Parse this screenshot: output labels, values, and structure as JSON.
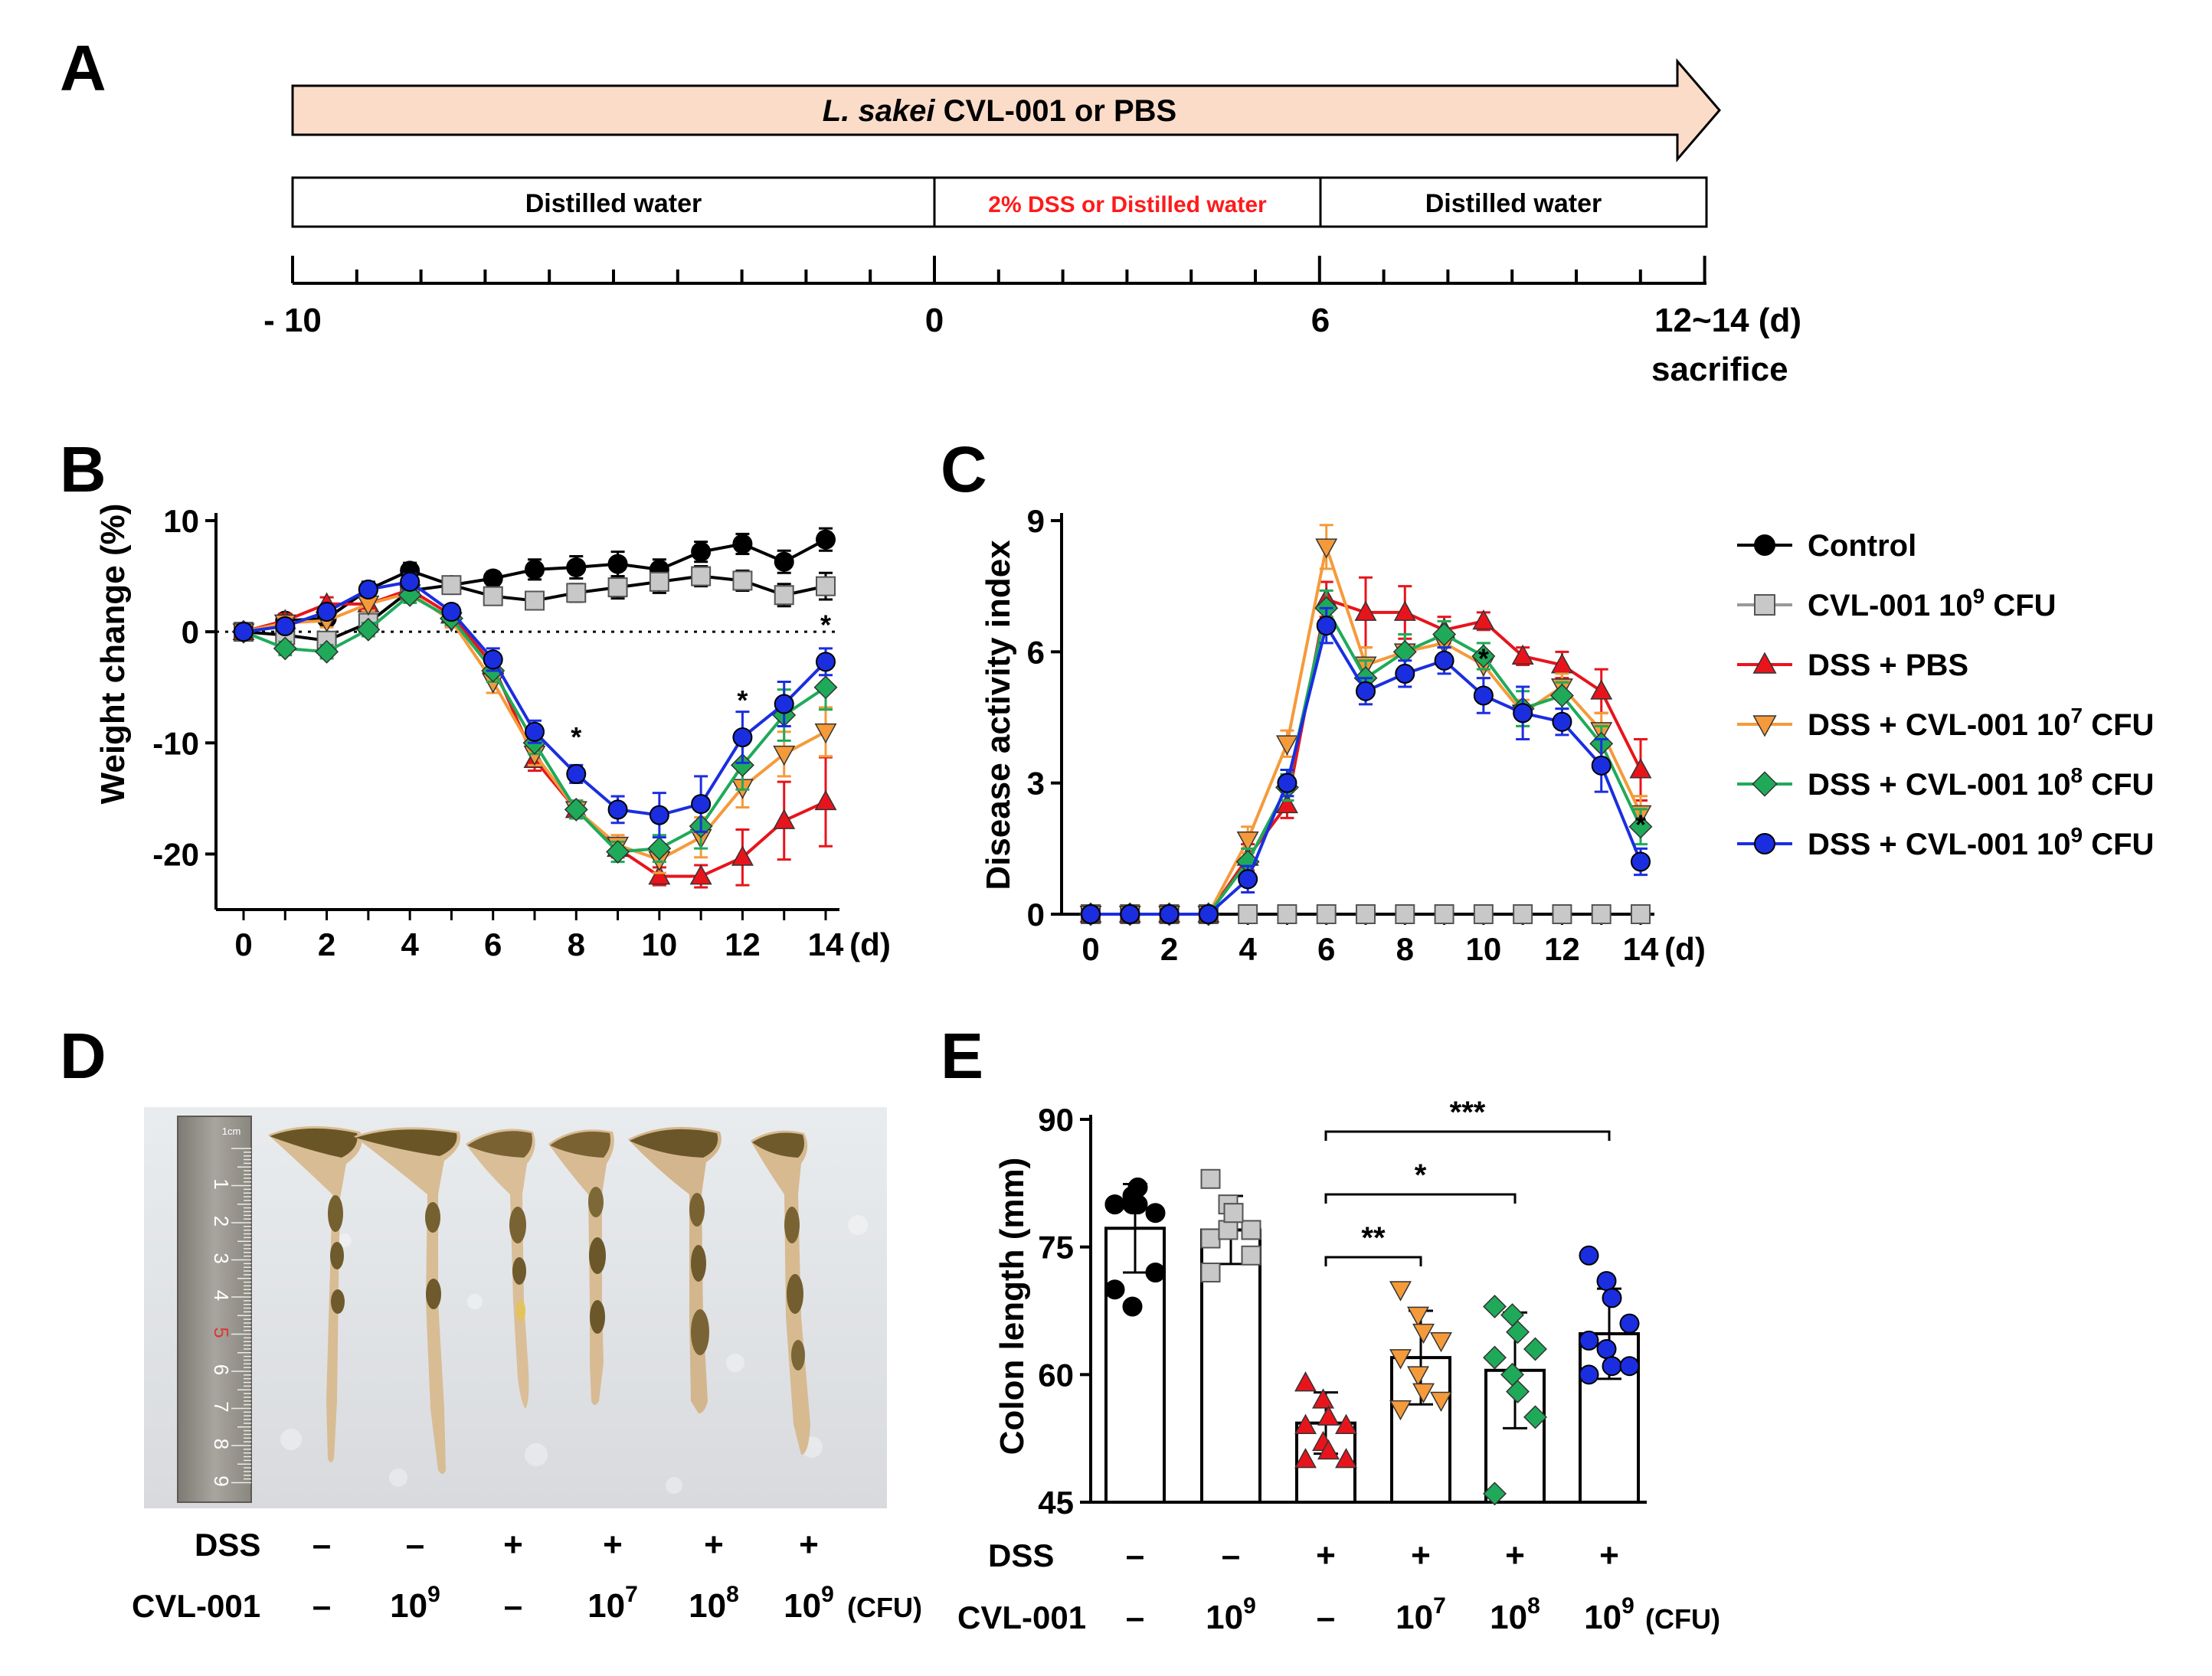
{
  "panel_letters": [
    "A",
    "B",
    "C",
    "D",
    "E"
  ],
  "colors": {
    "control": "#000000",
    "cvl_only": "#c8c8c8",
    "dss_pbs": "#e8141c",
    "d7": "#f59a3a",
    "d8": "#1faa5a",
    "d9": "#1a2ee0",
    "arrow_fill": "#fbdcc8",
    "red_text": "#ff1a1a"
  },
  "panel_a": {
    "arrow_label_italic": "L. sakei",
    "arrow_label_rest": " CVL-001 or PBS",
    "box1": "Distilled water",
    "box2": "2% DSS or Distilled water",
    "box3": "Distilled water",
    "tick_labels": [
      "- 10",
      "0",
      "6",
      "12~14 (d)"
    ],
    "sacrifice": "sacrifice"
  },
  "legend": [
    {
      "key": "control",
      "marker": "circle",
      "label": "Control",
      "sup": ""
    },
    {
      "key": "cvl_only",
      "marker": "square",
      "label": "CVL-001 10",
      "sup": "9",
      "after": " CFU"
    },
    {
      "key": "dss_pbs",
      "marker": "triangle",
      "label": "DSS + PBS",
      "sup": ""
    },
    {
      "key": "d7",
      "marker": "triangle-down",
      "label": "DSS + CVL-001 10",
      "sup": "7",
      "after": " CFU"
    },
    {
      "key": "d8",
      "marker": "diamond",
      "label": "DSS + CVL-001 10",
      "sup": "8",
      "after": " CFU"
    },
    {
      "key": "d9",
      "marker": "circle",
      "label": "DSS + CVL-001 10",
      "sup": "9",
      "after": " CFU"
    }
  ],
  "chart_data": [
    {
      "id": "B",
      "type": "line",
      "ylabel": "Weight change (%)",
      "x_unit": "(d)",
      "ylim": [
        -25,
        10
      ],
      "yticks": [
        10,
        0,
        -10,
        -20
      ],
      "xticks": [
        0,
        2,
        4,
        6,
        8,
        10,
        12,
        14
      ],
      "x": [
        0,
        1,
        2,
        3,
        4,
        5,
        6,
        7,
        8,
        9,
        10,
        11,
        12,
        13,
        14
      ],
      "zero_line": "dotted",
      "series": [
        {
          "key": "control",
          "values": [
            0,
            1.0,
            1.2,
            3.8,
            5.5,
            4.2,
            4.8,
            5.6,
            5.8,
            6.1,
            5.6,
            7.2,
            7.9,
            6.3,
            8.3
          ],
          "err": [
            0.5,
            0.6,
            0.6,
            0.7,
            0.7,
            0.6,
            0.6,
            0.9,
            1.0,
            1.1,
            0.9,
            0.9,
            0.9,
            1.0,
            1.0
          ]
        },
        {
          "key": "cvl_only",
          "values": [
            0,
            -0.3,
            -0.8,
            0.8,
            3.7,
            4.2,
            3.2,
            2.8,
            3.5,
            4.0,
            4.5,
            5.0,
            4.6,
            3.3,
            4.1
          ],
          "err": [
            0.5,
            0.6,
            0.6,
            0.7,
            0.7,
            0.6,
            0.7,
            0.7,
            0.8,
            1.0,
            1.0,
            0.9,
            0.9,
            1.0,
            1.2
          ]
        },
        {
          "key": "dss_pbs",
          "values": [
            0,
            1.0,
            2.5,
            2.5,
            3.8,
            1.5,
            -3.0,
            -11.5,
            -16.0,
            -19.5,
            -22.0,
            -22.0,
            -20.3,
            -17.0,
            -15.3
          ],
          "err": [
            0.3,
            0.6,
            0.6,
            0.6,
            0.7,
            0.6,
            1.0,
            1.0,
            0.8,
            0.8,
            0.8,
            1.0,
            2.5,
            3.5,
            4.0
          ]
        },
        {
          "key": "d7",
          "values": [
            0,
            0.8,
            1.0,
            2.5,
            3.5,
            1.0,
            -4.5,
            -11.0,
            -16.0,
            -19.2,
            -20.5,
            -18.5,
            -14.0,
            -11.0,
            -9.0
          ],
          "err": [
            0.3,
            0.6,
            0.6,
            0.6,
            0.7,
            0.6,
            1.0,
            1.0,
            0.8,
            0.9,
            1.2,
            1.8,
            1.8,
            2.0,
            2.2
          ]
        },
        {
          "key": "d8",
          "values": [
            0,
            -1.5,
            -1.8,
            0.2,
            3.3,
            1.2,
            -3.5,
            -10.0,
            -16.0,
            -19.8,
            -19.5,
            -17.5,
            -12.0,
            -7.5,
            -5.0
          ],
          "err": [
            0.3,
            0.6,
            0.6,
            0.6,
            0.7,
            0.6,
            1.0,
            1.0,
            0.8,
            0.9,
            1.2,
            2.0,
            2.2,
            2.3,
            2.0
          ]
        },
        {
          "key": "d9",
          "values": [
            0,
            0.5,
            1.8,
            3.8,
            4.5,
            1.8,
            -2.5,
            -9.0,
            -12.8,
            -16.0,
            -16.5,
            -15.5,
            -9.5,
            -6.5,
            -2.7
          ],
          "err": [
            0.3,
            0.6,
            0.6,
            0.6,
            0.7,
            0.6,
            1.0,
            1.0,
            0.8,
            1.2,
            2.0,
            2.5,
            2.3,
            2.0,
            1.2
          ]
        }
      ],
      "annotations": [
        {
          "x": 8,
          "y": -12.8,
          "text": "*"
        },
        {
          "x": 12,
          "y": -9.5,
          "text": "*"
        },
        {
          "x": 14,
          "y": -2.7,
          "text": "*"
        }
      ]
    },
    {
      "id": "C",
      "type": "line",
      "ylabel": "Disease activity index",
      "x_unit": "(d)",
      "ylim": [
        0,
        9
      ],
      "yticks": [
        0,
        3,
        6,
        9
      ],
      "xticks": [
        0,
        2,
        4,
        6,
        8,
        10,
        12,
        14
      ],
      "x": [
        0,
        1,
        2,
        3,
        4,
        5,
        6,
        7,
        8,
        9,
        10,
        11,
        12,
        13,
        14
      ],
      "series": [
        {
          "key": "control",
          "values": [
            0,
            0,
            0,
            0,
            0,
            0,
            0,
            0,
            0,
            0,
            0,
            0,
            0,
            0,
            0
          ],
          "err": [
            0,
            0,
            0,
            0,
            0,
            0,
            0,
            0,
            0,
            0,
            0,
            0,
            0,
            0,
            0
          ]
        },
        {
          "key": "cvl_only",
          "values": [
            0,
            0,
            0,
            0,
            0,
            0,
            0,
            0,
            0,
            0,
            0,
            0,
            0,
            0,
            0
          ],
          "err": [
            0,
            0,
            0,
            0,
            0,
            0,
            0,
            0,
            0,
            0,
            0,
            0,
            0,
            0,
            0
          ]
        },
        {
          "key": "dss_pbs",
          "values": [
            0,
            0,
            0,
            0,
            1.3,
            2.5,
            7.2,
            6.9,
            6.9,
            6.5,
            6.7,
            5.9,
            5.7,
            5.1,
            3.3
          ],
          "err": [
            0,
            0,
            0,
            0,
            0.3,
            0.3,
            0.4,
            0.8,
            0.6,
            0.3,
            0.2,
            0.2,
            0.3,
            0.5,
            0.7
          ]
        },
        {
          "key": "d7",
          "values": [
            0,
            0,
            0,
            0,
            1.7,
            3.9,
            8.4,
            5.7,
            6.0,
            6.2,
            5.7,
            4.6,
            5.2,
            4.2,
            2.3
          ],
          "err": [
            0,
            0,
            0,
            0,
            0.3,
            0.3,
            0.5,
            0.4,
            0.4,
            0.3,
            0.3,
            0.3,
            0.3,
            0.4,
            0.4
          ]
        },
        {
          "key": "d8",
          "values": [
            0,
            0,
            0,
            0,
            1.2,
            2.9,
            7.0,
            5.4,
            6.0,
            6.4,
            5.9,
            4.7,
            5.0,
            3.9,
            2.0
          ],
          "err": [
            0,
            0,
            0,
            0,
            0.3,
            0.3,
            0.4,
            0.4,
            0.4,
            0.3,
            0.3,
            0.4,
            0.3,
            0.4,
            0.4
          ]
        },
        {
          "key": "d9",
          "values": [
            0,
            0,
            0,
            0,
            0.8,
            3.0,
            6.6,
            5.1,
            5.5,
            5.8,
            5.0,
            4.6,
            4.4,
            3.4,
            1.2
          ],
          "err": [
            0,
            0,
            0,
            0,
            0.3,
            0.3,
            0.4,
            0.3,
            0.3,
            0.3,
            0.4,
            0.6,
            0.3,
            0.6,
            0.3
          ]
        }
      ],
      "annotations": [
        {
          "x": 10,
          "y": 5.0,
          "text": "*"
        },
        {
          "x": 14,
          "y": 1.2,
          "text": "*"
        }
      ]
    },
    {
      "id": "E",
      "type": "bar",
      "ylabel": "Colon length (mm)",
      "ylim": [
        45,
        90
      ],
      "yticks": [
        45,
        60,
        75,
        90
      ],
      "groups": [
        {
          "key": "control",
          "marker": "circle",
          "mean": 77.2,
          "sd": 5.2,
          "points": [
            80,
            80,
            80,
            79,
            80,
            81,
            82,
            72,
            70,
            68
          ]
        },
        {
          "key": "cvl_only",
          "marker": "square",
          "mean": 77.0,
          "sd": 4.0,
          "points": [
            83,
            80,
            79,
            77,
            76,
            77,
            79,
            74,
            72
          ]
        },
        {
          "key": "dss_pbs",
          "marker": "triangle",
          "mean": 54.3,
          "sd": 3.6,
          "points": [
            59,
            57,
            55,
            54,
            54,
            52,
            51,
            50,
            50
          ]
        },
        {
          "key": "d7",
          "marker": "triangle-down",
          "mean": 62.0,
          "sd": 5.5,
          "points": [
            70,
            67,
            65,
            64,
            62,
            60,
            58,
            57,
            56
          ]
        },
        {
          "key": "d8",
          "marker": "diamond",
          "mean": 60.5,
          "sd": 6.8,
          "points": [
            68,
            67,
            65,
            63,
            62,
            60,
            58,
            55,
            46
          ]
        },
        {
          "key": "d9",
          "marker": "circle",
          "mean": 64.8,
          "sd": 5.3,
          "points": [
            74,
            71,
            69,
            66,
            64,
            63,
            61,
            61,
            60
          ]
        }
      ],
      "significance": [
        {
          "from": 2,
          "to": 3,
          "text": "**"
        },
        {
          "from": 2,
          "to": 4,
          "text": "*"
        },
        {
          "from": 2,
          "to": 5,
          "text": "***"
        }
      ]
    }
  ],
  "conditions": {
    "dss_label": "DSS",
    "cvl_label": "CVL-001",
    "dss": [
      "–",
      "–",
      "+",
      "+",
      "+",
      "+"
    ],
    "cvl": [
      {
        "base": "–",
        "sup": ""
      },
      {
        "base": "10",
        "sup": "9"
      },
      {
        "base": "–",
        "sup": ""
      },
      {
        "base": "10",
        "sup": "7"
      },
      {
        "base": "10",
        "sup": "8"
      },
      {
        "base": "10",
        "sup": "9"
      }
    ],
    "cfu": "(CFU)"
  },
  "panel_d": {
    "ruler_numbers": [
      "1",
      "2",
      "3",
      "4",
      "5",
      "6",
      "7",
      "8",
      "9"
    ],
    "ruler_unit": "1cm"
  }
}
